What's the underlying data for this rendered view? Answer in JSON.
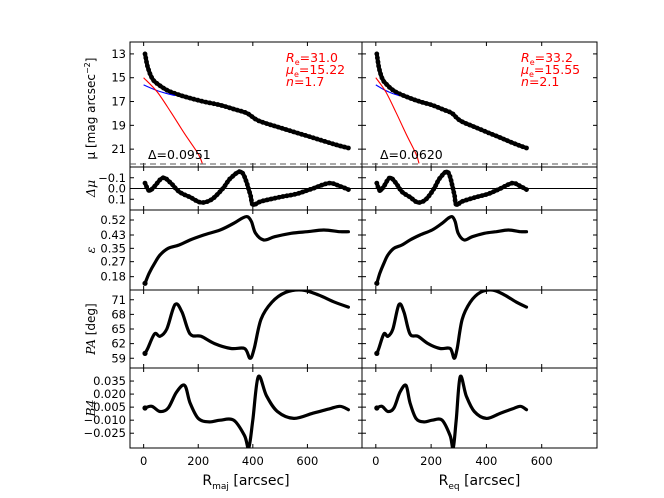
{
  "chart_data": {
    "type": "scatter",
    "description_layout": "two columns x five rows of stacked panels",
    "columns": [
      {
        "xlabel_main": "R",
        "xlabel_sub": "maj",
        "xlabel_unit": " [arcsec]",
        "xlim": [
          -50,
          800
        ],
        "xticks": [
          0,
          200,
          400,
          600
        ],
        "xtick_labels": [
          "0",
          "200",
          "400",
          "600"
        ],
        "fit": {
          "Re_label": "R",
          "Re_sub": "e",
          "Re_value": "=31.0",
          "mu_label": "μ",
          "mu_sub": "e",
          "mu_value": "=15.22",
          "n_label": "n",
          "n_value": "=1.7"
        },
        "delta_text": "Δ=0.0951",
        "x_max": 750
      },
      {
        "xlabel_main": "R",
        "xlabel_sub": "eq",
        "xlabel_unit": " [arcsec]",
        "xlim": [
          -50,
          800
        ],
        "xticks": [
          0,
          200,
          400,
          600
        ],
        "xtick_labels": [
          "0",
          "200",
          "400",
          "600"
        ],
        "fit": {
          "Re_label": "R",
          "Re_sub": "e",
          "Re_value": "=33.2",
          "mu_label": "μ",
          "mu_sub": "e",
          "mu_value": "=15.55",
          "n_label": "n",
          "n_value": "=2.1"
        },
        "delta_text": "Δ=0.0620",
        "x_max": 545
      }
    ],
    "rows": [
      {
        "key": "mu",
        "ylabel": "μ [mag arcsec",
        "ylabel_sup": "−2",
        "ylabel_close": "]",
        "ylim": [
          22.5,
          12
        ],
        "yticks": [
          13,
          15,
          17,
          19,
          21
        ],
        "ytick_labels": [
          "13",
          "15",
          "17",
          "19",
          "21"
        ],
        "dashed_line_y": 22.5,
        "series": [
          {
            "name": "data",
            "points": [
              [
                5,
                13.0
              ],
              [
                15,
                14.1
              ],
              [
                30,
                15.0
              ],
              [
                50,
                15.5
              ],
              [
                100,
                16.2
              ],
              [
                200,
                16.9
              ],
              [
                280,
                17.3
              ],
              [
                340,
                17.7
              ],
              [
                380,
                18.0
              ],
              [
                420,
                18.6
              ],
              [
                500,
                19.2
              ],
              [
                600,
                19.9
              ],
              [
                700,
                20.6
              ],
              [
                750,
                20.9
              ]
            ]
          },
          {
            "name": "disk",
            "points": [
              [
                0,
                15.6
              ],
              [
                40,
                16.0
              ],
              [
                80,
                16.3
              ],
              [
                115,
                16.5
              ]
            ]
          },
          {
            "name": "sersic",
            "points": [
              [
                0,
                15.0
              ],
              [
                50,
                16.2
              ],
              [
                100,
                17.9
              ],
              [
                150,
                19.7
              ],
              [
                200,
                21.4
              ],
              [
                215,
                22.2
              ]
            ]
          }
        ]
      },
      {
        "key": "delta_mu",
        "ylabel": "Δμ",
        "ylim": [
          0.2,
          -0.2
        ],
        "yticks": [
          -0.1,
          0.0,
          0.1
        ],
        "ytick_labels": [
          "−0.1",
          "0.0",
          "0.1"
        ],
        "zero_line": 0.0,
        "series": [
          {
            "name": "residual",
            "points": [
              [
                5,
                -0.05
              ],
              [
                20,
                0.02
              ],
              [
                40,
                -0.02
              ],
              [
                70,
                -0.1
              ],
              [
                100,
                -0.05
              ],
              [
                130,
                0.03
              ],
              [
                170,
                0.08
              ],
              [
                210,
                0.13
              ],
              [
                250,
                0.1
              ],
              [
                290,
                0.0
              ],
              [
                320,
                -0.1
              ],
              [
                360,
                -0.15
              ],
              [
                390,
                0.05
              ],
              [
                400,
                0.15
              ],
              [
                430,
                0.12
              ],
              [
                500,
                0.08
              ],
              [
                560,
                0.05
              ],
              [
                620,
                0.0
              ],
              [
                680,
                -0.05
              ],
              [
                720,
                -0.02
              ],
              [
                750,
                0.01
              ]
            ]
          }
        ]
      },
      {
        "key": "ellipticity",
        "ylabel": "ε",
        "ylim": [
          0.1,
          0.58
        ],
        "yticks": [
          0.18,
          0.27,
          0.35,
          0.43,
          0.52
        ],
        "ytick_labels": [
          "0.18",
          "0.27",
          "0.35",
          "0.43",
          "0.52"
        ],
        "series": [
          {
            "name": "eps",
            "points": [
              [
                5,
                0.14
              ],
              [
                20,
                0.2
              ],
              [
                40,
                0.26
              ],
              [
                60,
                0.31
              ],
              [
                90,
                0.35
              ],
              [
                130,
                0.37
              ],
              [
                170,
                0.4
              ],
              [
                220,
                0.43
              ],
              [
                280,
                0.46
              ],
              [
                330,
                0.5
              ],
              [
                360,
                0.53
              ],
              [
                380,
                0.54
              ],
              [
                395,
                0.51
              ],
              [
                410,
                0.44
              ],
              [
                440,
                0.4
              ],
              [
                480,
                0.42
              ],
              [
                540,
                0.44
              ],
              [
                600,
                0.45
              ],
              [
                660,
                0.46
              ],
              [
                720,
                0.45
              ],
              [
                750,
                0.45
              ]
            ]
          }
        ]
      },
      {
        "key": "pa",
        "ylabel": "PA",
        "ylabel_unit": " [deg]",
        "ylim": [
          57,
          73
        ],
        "yticks": [
          59,
          62,
          65,
          68,
          71
        ],
        "ytick_labels": [
          "59",
          "62",
          "65",
          "68",
          "71"
        ],
        "series": [
          {
            "name": "pa",
            "points": [
              [
                5,
                60
              ],
              [
                15,
                61
              ],
              [
                40,
                64
              ],
              [
                60,
                63.5
              ],
              [
                85,
                65
              ],
              [
                115,
                70
              ],
              [
                140,
                68.5
              ],
              [
                170,
                64
              ],
              [
                210,
                63.5
              ],
              [
                260,
                62
              ],
              [
                320,
                61
              ],
              [
                370,
                61
              ],
              [
                390,
                59
              ],
              [
                405,
                61
              ],
              [
                430,
                67
              ],
              [
                470,
                70.5
              ],
              [
                520,
                72.5
              ],
              [
                580,
                73
              ],
              [
                640,
                72
              ],
              [
                700,
                70.5
              ],
              [
                750,
                69.5
              ]
            ]
          }
        ]
      },
      {
        "key": "b4",
        "ylabel": "B4",
        "ylim": [
          -0.042,
          0.05
        ],
        "yticks": [
          -0.025,
          -0.01,
          0.005,
          0.02,
          0.035
        ],
        "ytick_labels": [
          "−0.025",
          "−0.010",
          "0.005",
          "0.020",
          "0.035"
        ],
        "series": [
          {
            "name": "b4",
            "points": [
              [
                5,
                0.004
              ],
              [
                30,
                0.006
              ],
              [
                60,
                0.0
              ],
              [
                90,
                0.004
              ],
              [
                120,
                0.022
              ],
              [
                150,
                0.03
              ],
              [
                170,
                0.01
              ],
              [
                200,
                -0.008
              ],
              [
                240,
                -0.012
              ],
              [
                280,
                -0.01
              ],
              [
                330,
                -0.01
              ],
              [
                370,
                -0.028
              ],
              [
                385,
                -0.042
              ],
              [
                400,
                -0.01
              ],
              [
                420,
                0.04
              ],
              [
                450,
                0.018
              ],
              [
                490,
                0.0
              ],
              [
                550,
                -0.008
              ],
              [
                620,
                -0.002
              ],
              [
                680,
                0.003
              ],
              [
                720,
                0.006
              ],
              [
                750,
                0.002
              ]
            ]
          }
        ]
      }
    ]
  }
}
